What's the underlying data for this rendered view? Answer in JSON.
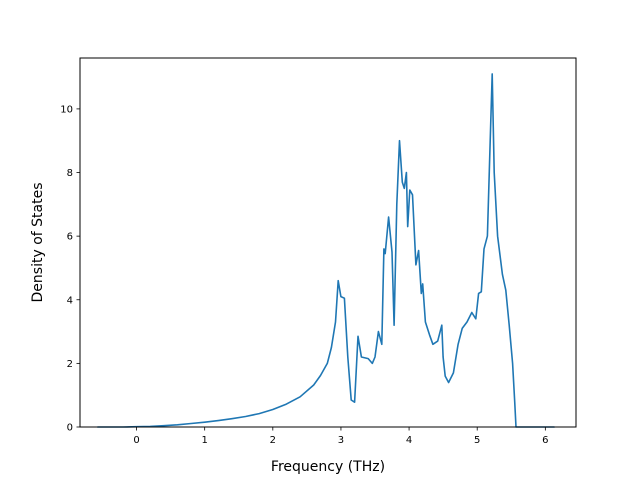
{
  "chart_data": {
    "type": "line",
    "title": "",
    "xlabel": "Frequency (THz)",
    "ylabel": "Density of States",
    "xlim": [
      -0.83,
      6.45
    ],
    "ylim": [
      0,
      11.6
    ],
    "x_ticks": [
      0,
      1,
      2,
      3,
      4,
      5,
      6
    ],
    "y_ticks": [
      0,
      2,
      4,
      6,
      8,
      10
    ],
    "grid": false,
    "legend": "none",
    "colors": {
      "line": "#1f77b4",
      "axes": "#000000"
    },
    "series": [
      {
        "x": [
          -0.57,
          -0.4,
          -0.2,
          0,
          0.2,
          0.4,
          0.6,
          0.8,
          1.0,
          1.2,
          1.4,
          1.6,
          1.8,
          2.0,
          2.2,
          2.4,
          2.6,
          2.7,
          2.8,
          2.86,
          2.92,
          2.96,
          3.0,
          3.05,
          3.1,
          3.15,
          3.2,
          3.25,
          3.3,
          3.4,
          3.46,
          3.5,
          3.55,
          3.6,
          3.63,
          3.65,
          3.7,
          3.75,
          3.78,
          3.82,
          3.86,
          3.9,
          3.93,
          3.96,
          3.98,
          4.01,
          4.05,
          4.1,
          4.14,
          4.18,
          4.2,
          4.24,
          4.3,
          4.35,
          4.42,
          4.48,
          4.5,
          4.53,
          4.58,
          4.65,
          4.72,
          4.78,
          4.85,
          4.92,
          4.98,
          5.02,
          5.06,
          5.1,
          5.15,
          5.19,
          5.22,
          5.25,
          5.3,
          5.37,
          5.42,
          5.47,
          5.52,
          5.55,
          5.57,
          5.6,
          5.8,
          6.0,
          6.13
        ],
        "y": [
          0.0,
          0.0,
          0.0,
          0.01,
          0.02,
          0.04,
          0.07,
          0.11,
          0.15,
          0.2,
          0.26,
          0.33,
          0.42,
          0.55,
          0.72,
          0.95,
          1.32,
          1.62,
          2.0,
          2.5,
          3.3,
          4.6,
          4.1,
          4.05,
          2.2,
          0.85,
          0.78,
          2.85,
          2.2,
          2.15,
          2.0,
          2.2,
          3.0,
          2.6,
          5.6,
          5.45,
          6.6,
          5.5,
          3.2,
          7.0,
          9.0,
          7.7,
          7.5,
          8.0,
          6.3,
          7.45,
          7.3,
          5.1,
          5.55,
          4.2,
          4.5,
          3.3,
          2.9,
          2.6,
          2.7,
          3.2,
          2.2,
          1.6,
          1.4,
          1.7,
          2.6,
          3.1,
          3.3,
          3.6,
          3.4,
          4.2,
          4.25,
          5.6,
          6.0,
          9.0,
          11.1,
          8.0,
          6.0,
          4.8,
          4.3,
          3.2,
          2.0,
          0.8,
          0.0,
          0.0,
          0.0,
          0.0,
          0.0
        ]
      }
    ]
  }
}
